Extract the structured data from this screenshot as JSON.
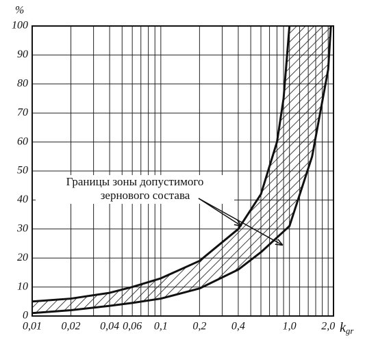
{
  "chart_data": {
    "type": "band",
    "y_label": "%",
    "x_label": {
      "text": "k",
      "subscript": "gr"
    },
    "annotation": [
      "Границы зоны допустимого",
      "зернового состава"
    ],
    "log_x": true,
    "color": "#111111",
    "xlim": [
      0.01,
      2.2
    ],
    "ylim": [
      0,
      100
    ],
    "yticks": [
      0,
      10,
      20,
      30,
      40,
      50,
      60,
      70,
      80,
      90,
      100
    ],
    "xticks": [
      {
        "value": 0.01,
        "label": "0,01"
      },
      {
        "value": 0.02,
        "label": "0,02"
      },
      {
        "value": 0.04,
        "label": "0,04"
      },
      {
        "value": 0.06,
        "label": "0,06"
      },
      {
        "value": 0.1,
        "label": "0,1"
      },
      {
        "value": 0.2,
        "label": "0,2"
      },
      {
        "value": 0.4,
        "label": "0,4"
      },
      {
        "value": 1.0,
        "label": "1,0"
      },
      {
        "value": 2.0,
        "label": "2,0"
      }
    ],
    "xminor": [
      0.03,
      0.05,
      0.07,
      0.08,
      0.09,
      0.3,
      0.5,
      0.6,
      0.7,
      0.8,
      0.9,
      1.2,
      1.4,
      1.6,
      1.8
    ],
    "grid": true,
    "series": [
      {
        "x": [
          0.01,
          0.02,
          0.04,
          0.06,
          0.1,
          0.2,
          0.4,
          0.6,
          0.8,
          0.9,
          1.0
        ],
        "values": [
          5,
          6,
          8,
          10,
          13,
          19,
          30,
          42,
          60,
          75,
          100
        ]
      },
      {
        "x": [
          0.01,
          0.02,
          0.04,
          0.06,
          0.1,
          0.2,
          0.4,
          0.6,
          1.0,
          1.5,
          2.0,
          2.1
        ],
        "values": [
          1,
          2,
          3.5,
          4.5,
          6,
          9.5,
          16,
          22,
          31,
          55,
          85,
          100
        ]
      }
    ]
  }
}
